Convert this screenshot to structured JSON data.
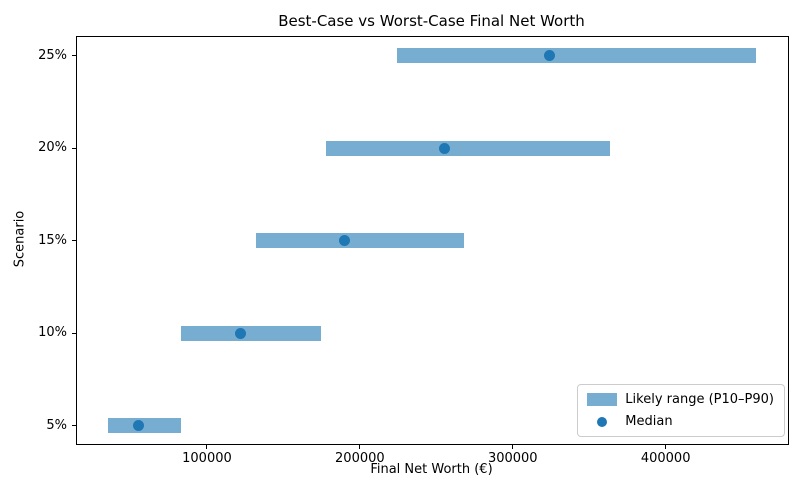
{
  "chart_data": {
    "type": "bar",
    "orientation": "horizontal",
    "title": "Best-Case vs Worst-Case Final Net Worth",
    "xlabel": "Final Net Worth (€)",
    "ylabel": "Scenario",
    "categories": [
      "5%",
      "10%",
      "15%",
      "20%",
      "25%"
    ],
    "series": [
      {
        "name": "P10",
        "values": [
          35500,
          83000,
          132000,
          178000,
          224500
        ]
      },
      {
        "name": "Median",
        "values": [
          55000,
          122000,
          190000,
          255500,
          324000
        ]
      },
      {
        "name": "P90",
        "values": [
          83000,
          174500,
          268000,
          363500,
          459000
        ]
      }
    ],
    "xticks": [
      100000,
      200000,
      300000,
      400000
    ],
    "xlim": [
      15000,
      480000
    ],
    "grid": false,
    "legend": {
      "position": "lower right",
      "entries": [
        "Likely range (P10–P90)",
        "Median"
      ]
    },
    "colors": {
      "range_bar": "#78ADD2",
      "median_dot": "#1F77B4"
    }
  }
}
